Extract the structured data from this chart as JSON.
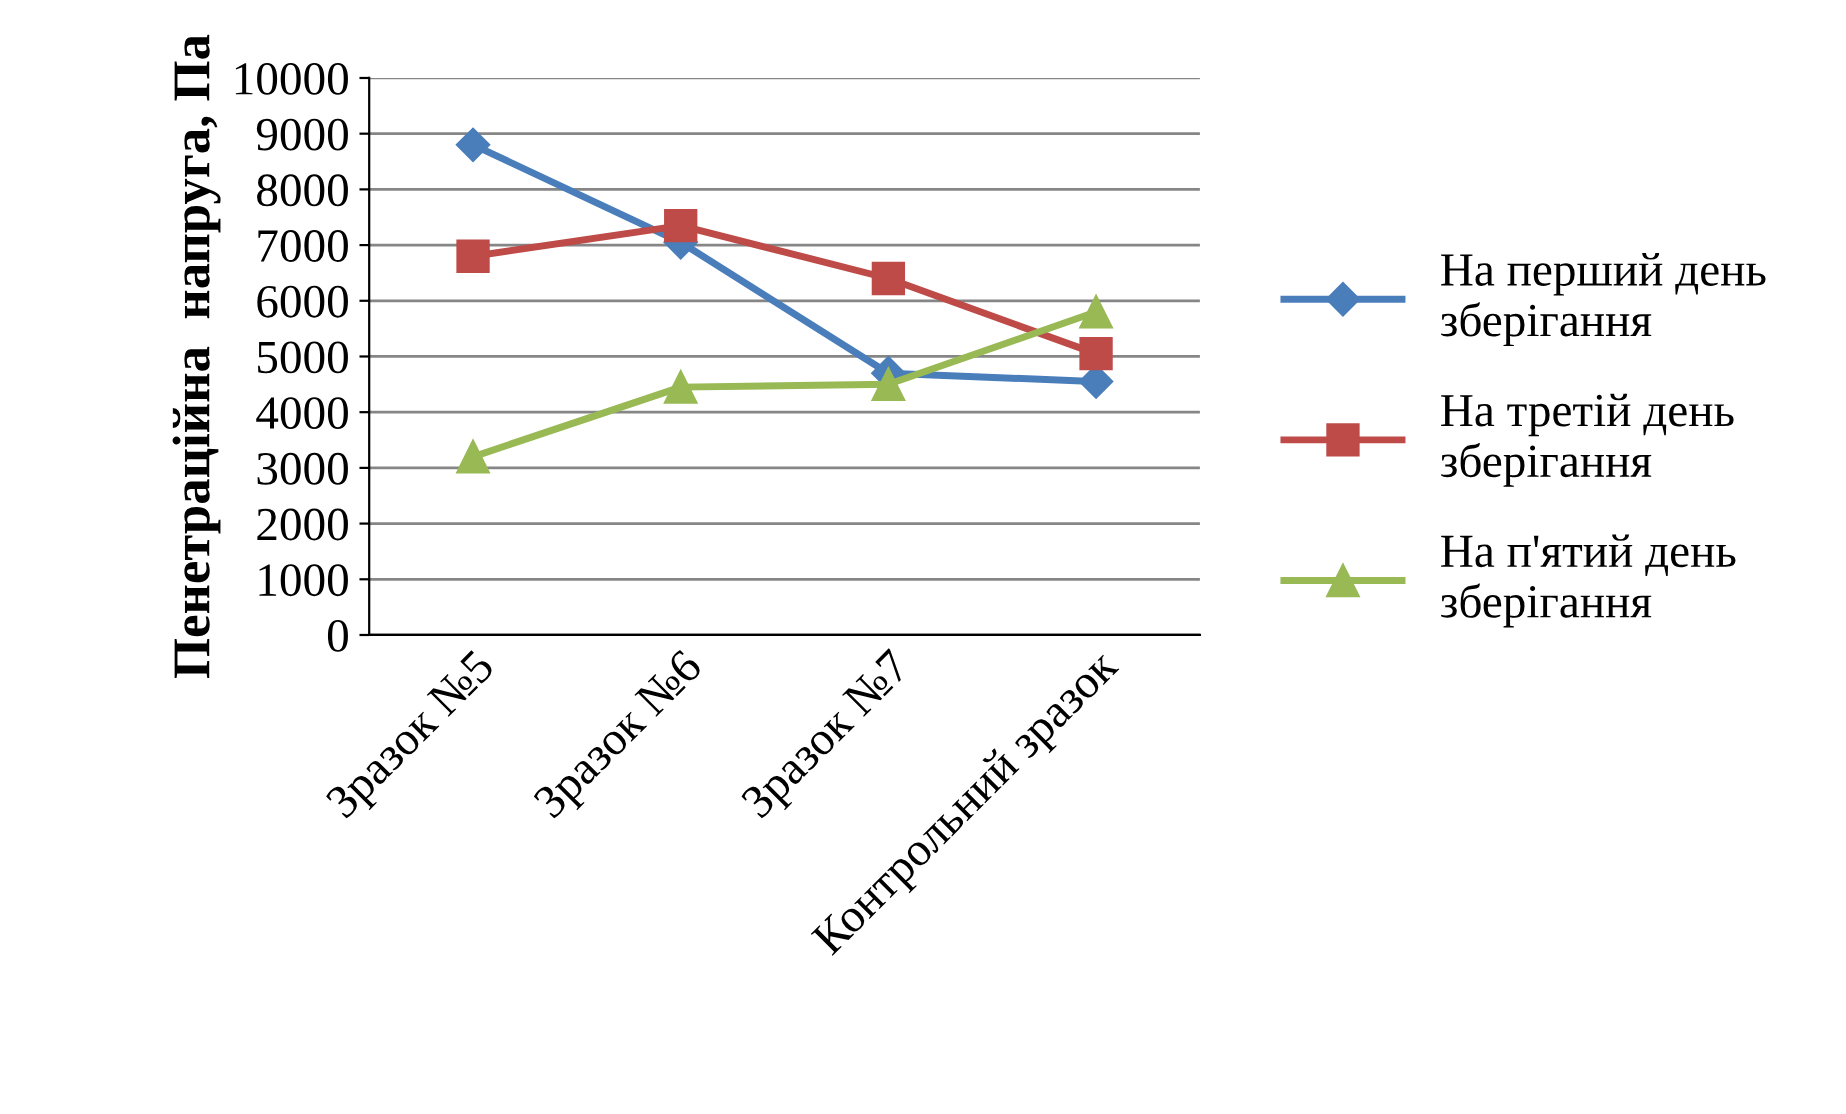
{
  "chart_data": {
    "type": "line",
    "ylabel": "Пенетраційна  напруга, Па",
    "categories": [
      "Зразок №5",
      "Зразок №6",
      "Зразок №7",
      "Контрольний зразок"
    ],
    "series": [
      {
        "name": "На перший день\nзберігання",
        "color": "#4a7ebb",
        "marker": "diamond",
        "values": [
          8800,
          7050,
          4700,
          4550
        ]
      },
      {
        "name": "На третій день\nзберігання",
        "color": "#be4b48",
        "marker": "square",
        "values": [
          6800,
          7350,
          6400,
          5050
        ]
      },
      {
        "name": "На п'ятий день\nзберігання",
        "color": "#98b954",
        "marker": "triangle",
        "values": [
          3200,
          4450,
          4500,
          5800
        ]
      }
    ],
    "ylim": [
      0,
      10000
    ],
    "yticks": [
      0,
      1000,
      2000,
      3000,
      4000,
      5000,
      6000,
      7000,
      8000,
      9000,
      10000
    ],
    "grid": "y",
    "legend": "right"
  }
}
